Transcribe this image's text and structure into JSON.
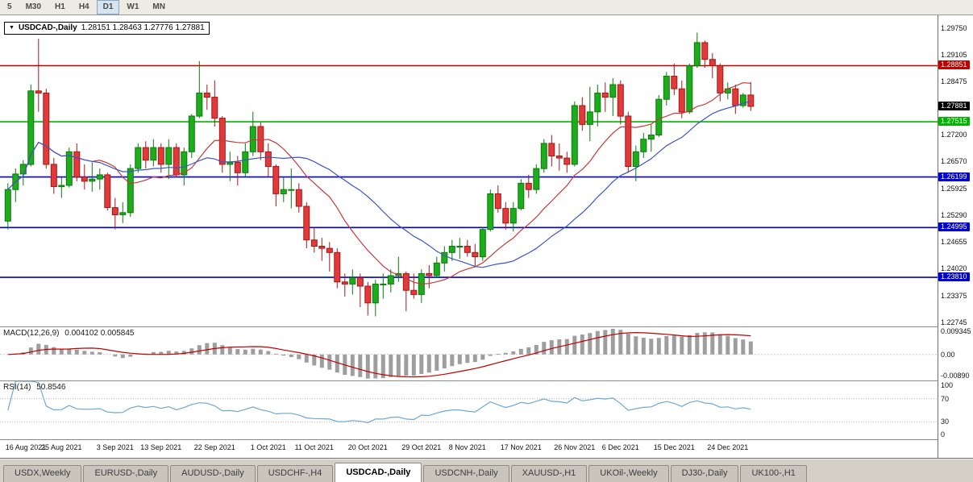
{
  "toolbar": {
    "timeframes": [
      {
        "label": "5",
        "active": false
      },
      {
        "label": "M30",
        "active": false
      },
      {
        "label": "H1",
        "active": false
      },
      {
        "label": "H4",
        "active": false
      },
      {
        "label": "D1",
        "active": true
      },
      {
        "label": "W1",
        "active": false
      },
      {
        "label": "MN",
        "active": false
      }
    ]
  },
  "chart": {
    "title": "USDCAD-,Daily",
    "ohlc_text": "1.28151 1.28463 1.27776 1.27881"
  },
  "chart_data": {
    "type": "candlestick",
    "symbol": "USDCAD-",
    "period": "Daily",
    "last_bar": {
      "open": "1.28151",
      "high": "1.28463",
      "low": "1.27776",
      "close": "1.27881"
    },
    "price_axis": {
      "min": 1.2264,
      "max": 1.3005,
      "tick_labels": [
        "1.29750",
        "1.29105",
        "1.28475",
        "1.27200",
        "1.26570",
        "1.25925",
        "1.25290",
        "1.24655",
        "1.24020",
        "1.23375",
        "1.22745"
      ]
    },
    "current_price": {
      "value": 1.27881,
      "label": "1.27881",
      "bg": "#000000"
    },
    "levels": [
      {
        "value": 1.28851,
        "label": "1.28851",
        "color": "#C00000"
      },
      {
        "value": 1.27515,
        "label": "1.27515",
        "color": "#00B500"
      },
      {
        "value": 1.26199,
        "label": "1.26199",
        "color": "#0000D0"
      },
      {
        "value": 1.24995,
        "label": "1.24995",
        "color": "#0000D0"
      },
      {
        "value": 1.2381,
        "label": "1.23810",
        "color": "#0000D0"
      }
    ],
    "colors": {
      "up_fill": "#1CAC1C",
      "up_stroke": "#0B7A0B",
      "down_fill": "#E03A3A",
      "down_stroke": "#A51616"
    },
    "moving_averages": [
      {
        "period": 12,
        "color": "#C23B3B"
      },
      {
        "period": 24,
        "color": "#3B56C2"
      }
    ],
    "x_labels": [
      {
        "text": "16 Aug 2021",
        "bar": 0
      },
      {
        "text": "25 Aug 2021",
        "bar": 7
      },
      {
        "text": "3 Sep 2021",
        "bar": 14
      },
      {
        "text": "13 Sep 2021",
        "bar": 20
      },
      {
        "text": "22 Sep 2021",
        "bar": 27
      },
      {
        "text": "1 Oct 2021",
        "bar": 34
      },
      {
        "text": "11 Oct 2021",
        "bar": 40
      },
      {
        "text": "20 Oct 2021",
        "bar": 47
      },
      {
        "text": "29 Oct 2021",
        "bar": 54
      },
      {
        "text": "8 Nov 2021",
        "bar": 60
      },
      {
        "text": "17 Nov 2021",
        "bar": 67
      },
      {
        "text": "26 Nov 2021",
        "bar": 74
      },
      {
        "text": "6 Dec 2021",
        "bar": 80
      },
      {
        "text": "15 Dec 2021",
        "bar": 87
      },
      {
        "text": "24 Dec 2021",
        "bar": 94
      }
    ],
    "candles": [
      [
        1.2515,
        1.2605,
        1.2495,
        1.259
      ],
      [
        1.259,
        1.264,
        1.256,
        1.2627
      ],
      [
        1.2627,
        1.266,
        1.26,
        1.265
      ],
      [
        1.265,
        1.284,
        1.2645,
        1.2825
      ],
      [
        1.2825,
        1.2949,
        1.2775,
        1.282
      ],
      [
        1.282,
        1.283,
        1.264,
        1.265
      ],
      [
        1.265,
        1.2665,
        1.258,
        1.2597
      ],
      [
        1.2597,
        1.262,
        1.257,
        1.26
      ],
      [
        1.26,
        1.269,
        1.2595,
        1.268
      ],
      [
        1.268,
        1.27,
        1.261,
        1.262
      ],
      [
        1.262,
        1.265,
        1.259,
        1.261
      ],
      [
        1.261,
        1.2655,
        1.2585,
        1.2615
      ],
      [
        1.2615,
        1.264,
        1.259,
        1.2625
      ],
      [
        1.2625,
        1.263,
        1.254,
        1.2547
      ],
      [
        1.2547,
        1.257,
        1.2495,
        1.253
      ],
      [
        1.253,
        1.256,
        1.251,
        1.2535
      ],
      [
        1.2535,
        1.265,
        1.2525,
        1.264
      ],
      [
        1.264,
        1.27,
        1.263,
        1.269
      ],
      [
        1.269,
        1.2705,
        1.264,
        1.266
      ],
      [
        1.266,
        1.271,
        1.2645,
        1.269
      ],
      [
        1.269,
        1.27,
        1.263,
        1.265
      ],
      [
        1.265,
        1.271,
        1.2615,
        1.269
      ],
      [
        1.269,
        1.27,
        1.262,
        1.2625
      ],
      [
        1.2625,
        1.269,
        1.26,
        1.268
      ],
      [
        1.268,
        1.277,
        1.2665,
        1.2765
      ],
      [
        1.2765,
        1.2896,
        1.276,
        1.282
      ],
      [
        1.282,
        1.284,
        1.278,
        1.281
      ],
      [
        1.281,
        1.285,
        1.274,
        1.276
      ],
      [
        1.276,
        1.2765,
        1.263,
        1.265
      ],
      [
        1.265,
        1.268,
        1.261,
        1.2655
      ],
      [
        1.2655,
        1.267,
        1.26,
        1.263
      ],
      [
        1.263,
        1.27,
        1.262,
        1.268
      ],
      [
        1.268,
        1.2775,
        1.267,
        1.274
      ],
      [
        1.274,
        1.275,
        1.266,
        1.268
      ],
      [
        1.268,
        1.27,
        1.262,
        1.2645
      ],
      [
        1.2645,
        1.265,
        1.255,
        1.258
      ],
      [
        1.258,
        1.262,
        1.256,
        1.259
      ],
      [
        1.259,
        1.264,
        1.2545,
        1.259
      ],
      [
        1.259,
        1.2605,
        1.2535,
        1.255
      ],
      [
        1.255,
        1.256,
        1.245,
        1.247
      ],
      [
        1.247,
        1.25,
        1.244,
        1.2455
      ],
      [
        1.2455,
        1.2475,
        1.242,
        1.245
      ],
      [
        1.245,
        1.2465,
        1.2395,
        1.244
      ],
      [
        1.244,
        1.245,
        1.2355,
        1.237
      ],
      [
        1.237,
        1.239,
        1.2335,
        1.2365
      ],
      [
        1.2365,
        1.24,
        1.234,
        1.238
      ],
      [
        1.238,
        1.239,
        1.231,
        1.236
      ],
      [
        1.236,
        1.237,
        1.229,
        1.232
      ],
      [
        1.232,
        1.2375,
        1.2288,
        1.2365
      ],
      [
        1.2365,
        1.239,
        1.233,
        1.2365
      ],
      [
        1.2365,
        1.24,
        1.2345,
        1.2385
      ],
      [
        1.2385,
        1.243,
        1.237,
        1.239
      ],
      [
        1.239,
        1.2395,
        1.23,
        1.235
      ],
      [
        1.235,
        1.239,
        1.233,
        1.234
      ],
      [
        1.234,
        1.24,
        1.232,
        1.239
      ],
      [
        1.239,
        1.241,
        1.2355,
        1.2385
      ],
      [
        1.2385,
        1.243,
        1.238,
        1.2415
      ],
      [
        1.2415,
        1.2455,
        1.2395,
        1.244
      ],
      [
        1.244,
        1.247,
        1.242,
        1.2455
      ],
      [
        1.2455,
        1.2475,
        1.2425,
        1.2455
      ],
      [
        1.2455,
        1.247,
        1.243,
        1.244
      ],
      [
        1.244,
        1.246,
        1.2405,
        1.243
      ],
      [
        1.243,
        1.25,
        1.242,
        1.2495
      ],
      [
        1.2495,
        1.259,
        1.249,
        1.258
      ],
      [
        1.258,
        1.26,
        1.2535,
        1.2545
      ],
      [
        1.2545,
        1.256,
        1.2495,
        1.251
      ],
      [
        1.251,
        1.256,
        1.249,
        1.2545
      ],
      [
        1.2545,
        1.2615,
        1.254,
        1.2605
      ],
      [
        1.2605,
        1.2625,
        1.257,
        1.259
      ],
      [
        1.259,
        1.265,
        1.258,
        1.264
      ],
      [
        1.264,
        1.271,
        1.263,
        1.27
      ],
      [
        1.27,
        1.272,
        1.2645,
        1.267
      ],
      [
        1.267,
        1.27,
        1.2635,
        1.2665
      ],
      [
        1.2665,
        1.268,
        1.263,
        1.265
      ],
      [
        1.265,
        1.28,
        1.2645,
        1.279
      ],
      [
        1.279,
        1.281,
        1.273,
        1.2745
      ],
      [
        1.2745,
        1.2835,
        1.2705,
        1.2775
      ],
      [
        1.2775,
        1.284,
        1.274,
        1.282
      ],
      [
        1.282,
        1.2845,
        1.2775,
        1.281
      ],
      [
        1.281,
        1.2855,
        1.2765,
        1.284
      ],
      [
        1.284,
        1.285,
        1.2745,
        1.2765
      ],
      [
        1.2765,
        1.2775,
        1.263,
        1.2645
      ],
      [
        1.2645,
        1.2695,
        1.261,
        1.268
      ],
      [
        1.268,
        1.2725,
        1.2665,
        1.271
      ],
      [
        1.271,
        1.2745,
        1.268,
        1.272
      ],
      [
        1.272,
        1.2815,
        1.2715,
        1.2805
      ],
      [
        1.2805,
        1.287,
        1.279,
        1.286
      ],
      [
        1.286,
        1.289,
        1.2815,
        1.283
      ],
      [
        1.283,
        1.285,
        1.276,
        1.2775
      ],
      [
        1.2775,
        1.289,
        1.277,
        1.2885
      ],
      [
        1.2885,
        1.2964,
        1.288,
        1.294
      ],
      [
        1.294,
        1.2945,
        1.288,
        1.29
      ],
      [
        1.29,
        1.2915,
        1.2855,
        1.2885
      ],
      [
        1.2885,
        1.289,
        1.28,
        1.282
      ],
      [
        1.282,
        1.2845,
        1.2805,
        1.283
      ],
      [
        1.283,
        1.284,
        1.277,
        1.279
      ],
      [
        1.279,
        1.282,
        1.2785,
        1.28151
      ],
      [
        1.28151,
        1.28463,
        1.27776,
        1.27881
      ]
    ],
    "macd": {
      "label": "MACD(12,26,9)",
      "values_text": "0.004102 0.005845",
      "fast": 12,
      "slow": 26,
      "signal": 9,
      "scale": {
        "max": 0.009345,
        "min": -0.008905
      },
      "axis_labels": [
        {
          "text": "0.009345",
          "value": 0.009345
        },
        {
          "text": "0.00",
          "value": 0
        },
        {
          "text": "-0.00890",
          "value": -0.008905
        }
      ],
      "histogram_color": "#9E9E9E",
      "signal_color": "#C00000"
    },
    "rsi": {
      "label": "RSI(14)",
      "value_text": "50.8546",
      "period": 14,
      "levels": [
        70,
        30
      ],
      "axis_labels": [
        {
          "text": "100",
          "value": 100
        },
        {
          "text": "70",
          "value": 70
        },
        {
          "text": "30",
          "value": 30
        },
        {
          "text": "0",
          "value": 0
        }
      ],
      "line_color": "#6FA8D2"
    }
  },
  "tabs": [
    {
      "label": "USDX,Weekly",
      "active": false
    },
    {
      "label": "EURUSD-,Daily",
      "active": false
    },
    {
      "label": "AUDUSD-,Daily",
      "active": false
    },
    {
      "label": "USDCHF-,H4",
      "active": false
    },
    {
      "label": "USDCAD-,Daily",
      "active": true
    },
    {
      "label": "USDCNH-,Daily",
      "active": false
    },
    {
      "label": "XAUUSD-,H1",
      "active": false
    },
    {
      "label": "UKOil-,Weekly",
      "active": false
    },
    {
      "label": "DJ30-,Daily",
      "active": false
    },
    {
      "label": "UK100-,H1",
      "active": false
    }
  ]
}
